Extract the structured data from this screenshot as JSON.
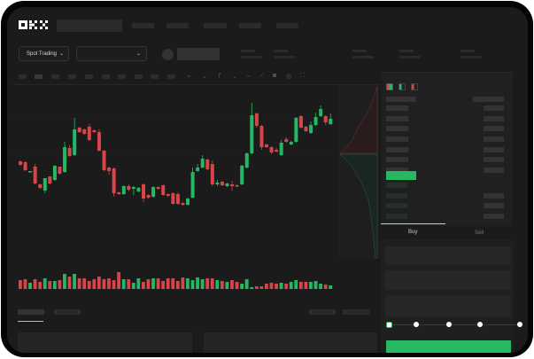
{
  "brand": {
    "logo": "OKX"
  },
  "selector": {
    "market_label": "Spot Trading"
  },
  "trade": {
    "tabs": [
      {
        "label": "Buy",
        "active": true
      },
      {
        "label": "Sell",
        "active": false
      }
    ],
    "slider_value": 0
  },
  "colors": {
    "up": "#25b864",
    "down": "#d9434a",
    "accent": "#27b862"
  },
  "chart_data": {
    "type": "candlestick",
    "candles": [
      [
        59,
        60,
        54,
        55
      ],
      [
        58,
        59,
        48,
        49
      ],
      [
        47,
        48,
        47,
        48
      ],
      [
        53,
        56,
        33,
        34
      ],
      [
        33,
        34,
        28,
        29
      ],
      [
        26,
        40,
        23,
        40
      ],
      [
        42,
        42,
        33,
        34
      ],
      [
        38,
        55,
        37,
        54
      ],
      [
        53,
        53,
        44,
        45
      ],
      [
        47,
        81,
        46,
        75
      ],
      [
        74,
        77,
        64,
        65
      ],
      [
        66,
        108,
        65,
        95
      ],
      [
        97,
        98,
        91,
        92
      ],
      [
        95,
        96,
        89,
        90
      ],
      [
        98,
        101,
        82,
        83
      ],
      [
        94,
        95,
        91,
        92
      ],
      [
        92,
        95,
        70,
        71
      ],
      [
        71,
        72,
        48,
        49
      ],
      [
        52,
        53,
        44,
        48
      ],
      [
        51,
        52,
        19,
        23
      ],
      [
        24,
        25,
        21,
        22
      ],
      [
        22,
        32,
        21,
        31
      ],
      [
        31,
        33,
        25,
        27
      ],
      [
        28,
        31,
        21,
        30
      ],
      [
        25,
        30,
        24,
        29
      ],
      [
        33,
        34,
        13,
        17
      ],
      [
        21,
        22,
        17,
        18
      ],
      [
        19,
        31,
        18,
        30
      ],
      [
        30,
        31,
        27,
        28
      ],
      [
        32,
        33,
        20,
        21
      ],
      [
        22,
        23,
        19,
        20
      ],
      [
        23,
        24,
        10,
        11
      ],
      [
        22,
        24,
        10,
        11
      ],
      [
        12,
        13,
        9,
        10
      ],
      [
        10,
        18,
        9,
        17
      ],
      [
        18,
        52,
        17,
        47
      ],
      [
        48,
        56,
        47,
        52
      ],
      [
        52,
        66,
        51,
        62
      ],
      [
        61,
        62,
        49,
        50
      ],
      [
        56,
        60,
        31,
        33
      ],
      [
        33,
        38,
        31,
        35
      ],
      [
        36,
        37,
        31,
        32
      ],
      [
        31,
        35,
        30,
        34
      ],
      [
        33,
        37,
        26,
        31
      ],
      [
        32,
        33,
        30,
        31
      ],
      [
        33,
        55,
        32,
        54
      ],
      [
        52,
        69,
        51,
        68
      ],
      [
        68,
        125,
        67,
        111
      ],
      [
        113,
        114,
        97,
        99
      ],
      [
        99,
        100,
        72,
        75
      ],
      [
        78,
        79,
        74,
        75
      ],
      [
        75,
        76,
        67,
        69
      ],
      [
        72,
        74,
        69,
        70
      ],
      [
        66,
        83,
        65,
        80
      ],
      [
        84,
        86,
        80,
        81
      ],
      [
        78,
        82,
        77,
        81
      ],
      [
        81,
        109,
        80,
        108
      ],
      [
        110,
        111,
        96,
        97
      ],
      [
        98,
        99,
        92,
        93
      ],
      [
        91,
        104,
        90,
        100
      ],
      [
        100,
        114,
        99,
        109
      ],
      [
        110,
        122,
        109,
        118
      ],
      [
        110,
        111,
        100,
        103
      ],
      [
        101,
        113,
        100,
        107
      ]
    ],
    "volumes": [
      10,
      11,
      7,
      11,
      8,
      12,
      9,
      9,
      10,
      17,
      14,
      17,
      12,
      12,
      9,
      11,
      14,
      11,
      12,
      10,
      19,
      11,
      11,
      7,
      12,
      8,
      11,
      12,
      12,
      9,
      12,
      12,
      9,
      13,
      12,
      10,
      13,
      11,
      12,
      12,
      10,
      9,
      8,
      10,
      8,
      6,
      11,
      2,
      3,
      3,
      6,
      7,
      6,
      7,
      6,
      8,
      10,
      8,
      8,
      8,
      9,
      6,
      5,
      4
    ],
    "depth": {
      "asks": [
        [
          0,
          96
        ],
        [
          -8,
          120
        ],
        [
          -20,
          140
        ],
        [
          -30,
          160
        ],
        [
          -42,
          172
        ]
      ],
      "bids": [
        [
          -42,
          173
        ],
        [
          -30,
          185
        ],
        [
          -18,
          205
        ],
        [
          -10,
          225
        ],
        [
          -6,
          250
        ],
        [
          -2,
          290
        ]
      ]
    }
  }
}
